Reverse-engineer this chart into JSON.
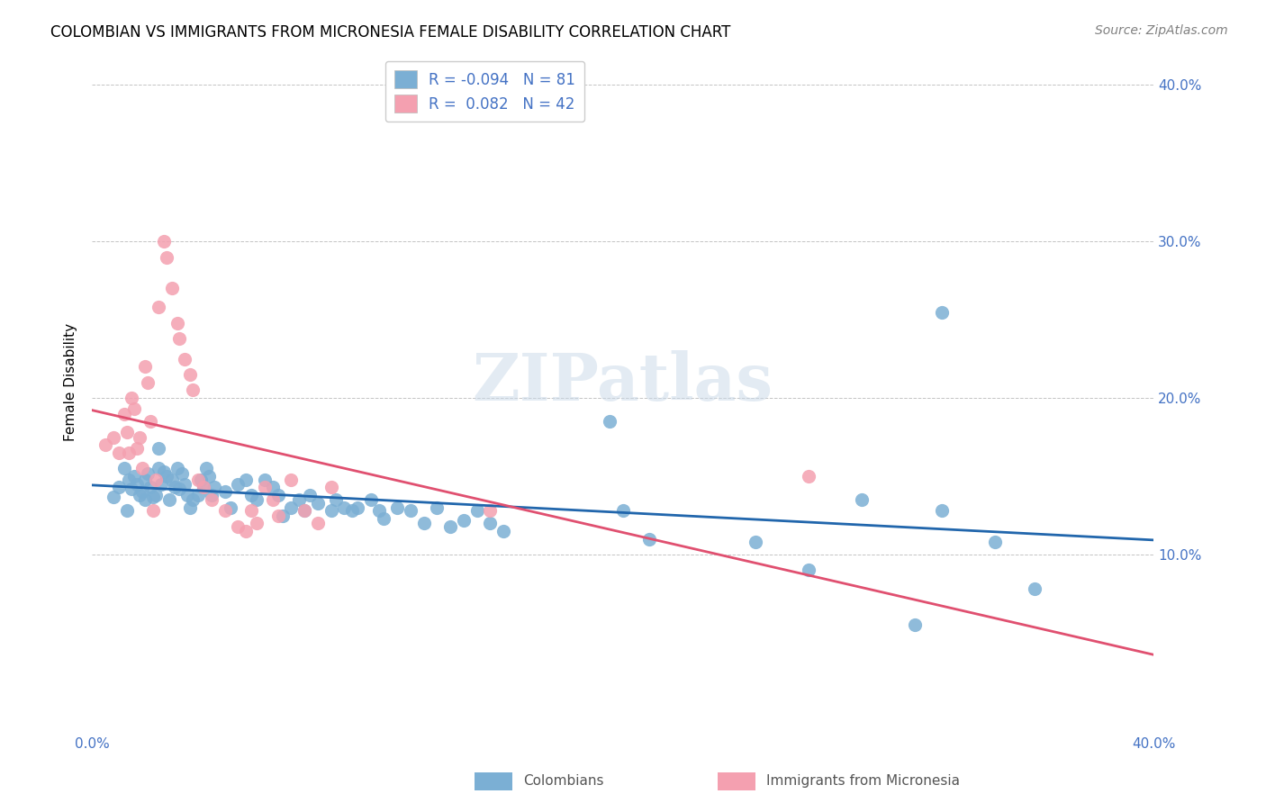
{
  "title": "COLOMBIAN VS IMMIGRANTS FROM MICRONESIA FEMALE DISABILITY CORRELATION CHART",
  "source": "Source: ZipAtlas.com",
  "ylabel": "Female Disability",
  "xlim": [
    0.0,
    0.4
  ],
  "ylim": [
    0.0,
    0.42
  ],
  "watermark": "ZIPatlas",
  "blue_R": "-0.094",
  "blue_N": "81",
  "pink_R": "0.082",
  "pink_N": "42",
  "blue_color": "#7bafd4",
  "pink_color": "#f4a0b0",
  "blue_line_color": "#2166ac",
  "pink_line_color": "#e05070",
  "axis_color": "#4472c4",
  "legend_R_color": "#4472c4",
  "blue_points": [
    [
      0.008,
      0.137
    ],
    [
      0.01,
      0.143
    ],
    [
      0.012,
      0.155
    ],
    [
      0.013,
      0.128
    ],
    [
      0.014,
      0.148
    ],
    [
      0.015,
      0.142
    ],
    [
      0.016,
      0.15
    ],
    [
      0.017,
      0.145
    ],
    [
      0.018,
      0.138
    ],
    [
      0.019,
      0.14
    ],
    [
      0.02,
      0.148
    ],
    [
      0.02,
      0.135
    ],
    [
      0.021,
      0.152
    ],
    [
      0.022,
      0.143
    ],
    [
      0.023,
      0.137
    ],
    [
      0.024,
      0.138
    ],
    [
      0.025,
      0.168
    ],
    [
      0.025,
      0.155
    ],
    [
      0.026,
      0.145
    ],
    [
      0.027,
      0.153
    ],
    [
      0.028,
      0.15
    ],
    [
      0.029,
      0.135
    ],
    [
      0.03,
      0.148
    ],
    [
      0.031,
      0.143
    ],
    [
      0.032,
      0.155
    ],
    [
      0.033,
      0.142
    ],
    [
      0.034,
      0.152
    ],
    [
      0.035,
      0.145
    ],
    [
      0.036,
      0.138
    ],
    [
      0.037,
      0.13
    ],
    [
      0.038,
      0.135
    ],
    [
      0.04,
      0.138
    ],
    [
      0.041,
      0.148
    ],
    [
      0.042,
      0.143
    ],
    [
      0.043,
      0.155
    ],
    [
      0.044,
      0.15
    ],
    [
      0.045,
      0.138
    ],
    [
      0.046,
      0.143
    ],
    [
      0.05,
      0.14
    ],
    [
      0.052,
      0.13
    ],
    [
      0.055,
      0.145
    ],
    [
      0.058,
      0.148
    ],
    [
      0.06,
      0.138
    ],
    [
      0.062,
      0.135
    ],
    [
      0.065,
      0.148
    ],
    [
      0.068,
      0.143
    ],
    [
      0.07,
      0.138
    ],
    [
      0.072,
      0.125
    ],
    [
      0.075,
      0.13
    ],
    [
      0.078,
      0.135
    ],
    [
      0.08,
      0.128
    ],
    [
      0.082,
      0.138
    ],
    [
      0.085,
      0.133
    ],
    [
      0.09,
      0.128
    ],
    [
      0.092,
      0.135
    ],
    [
      0.095,
      0.13
    ],
    [
      0.098,
      0.128
    ],
    [
      0.1,
      0.13
    ],
    [
      0.105,
      0.135
    ],
    [
      0.108,
      0.128
    ],
    [
      0.11,
      0.123
    ],
    [
      0.115,
      0.13
    ],
    [
      0.12,
      0.128
    ],
    [
      0.125,
      0.12
    ],
    [
      0.13,
      0.13
    ],
    [
      0.135,
      0.118
    ],
    [
      0.14,
      0.122
    ],
    [
      0.145,
      0.128
    ],
    [
      0.15,
      0.12
    ],
    [
      0.155,
      0.115
    ],
    [
      0.195,
      0.185
    ],
    [
      0.2,
      0.128
    ],
    [
      0.21,
      0.11
    ],
    [
      0.25,
      0.108
    ],
    [
      0.27,
      0.09
    ],
    [
      0.29,
      0.135
    ],
    [
      0.31,
      0.055
    ],
    [
      0.32,
      0.128
    ],
    [
      0.34,
      0.108
    ],
    [
      0.355,
      0.078
    ],
    [
      0.32,
      0.255
    ]
  ],
  "pink_points": [
    [
      0.005,
      0.17
    ],
    [
      0.008,
      0.175
    ],
    [
      0.01,
      0.165
    ],
    [
      0.012,
      0.19
    ],
    [
      0.013,
      0.178
    ],
    [
      0.014,
      0.165
    ],
    [
      0.015,
      0.2
    ],
    [
      0.016,
      0.193
    ],
    [
      0.017,
      0.168
    ],
    [
      0.018,
      0.175
    ],
    [
      0.019,
      0.155
    ],
    [
      0.02,
      0.22
    ],
    [
      0.021,
      0.21
    ],
    [
      0.022,
      0.185
    ],
    [
      0.023,
      0.128
    ],
    [
      0.024,
      0.148
    ],
    [
      0.025,
      0.258
    ],
    [
      0.027,
      0.3
    ],
    [
      0.028,
      0.29
    ],
    [
      0.03,
      0.27
    ],
    [
      0.032,
      0.248
    ],
    [
      0.033,
      0.238
    ],
    [
      0.035,
      0.225
    ],
    [
      0.037,
      0.215
    ],
    [
      0.038,
      0.205
    ],
    [
      0.04,
      0.148
    ],
    [
      0.042,
      0.143
    ],
    [
      0.045,
      0.135
    ],
    [
      0.05,
      0.128
    ],
    [
      0.055,
      0.118
    ],
    [
      0.058,
      0.115
    ],
    [
      0.06,
      0.128
    ],
    [
      0.062,
      0.12
    ],
    [
      0.065,
      0.143
    ],
    [
      0.068,
      0.135
    ],
    [
      0.07,
      0.125
    ],
    [
      0.075,
      0.148
    ],
    [
      0.08,
      0.128
    ],
    [
      0.085,
      0.12
    ],
    [
      0.09,
      0.143
    ],
    [
      0.15,
      0.128
    ],
    [
      0.27,
      0.15
    ]
  ]
}
